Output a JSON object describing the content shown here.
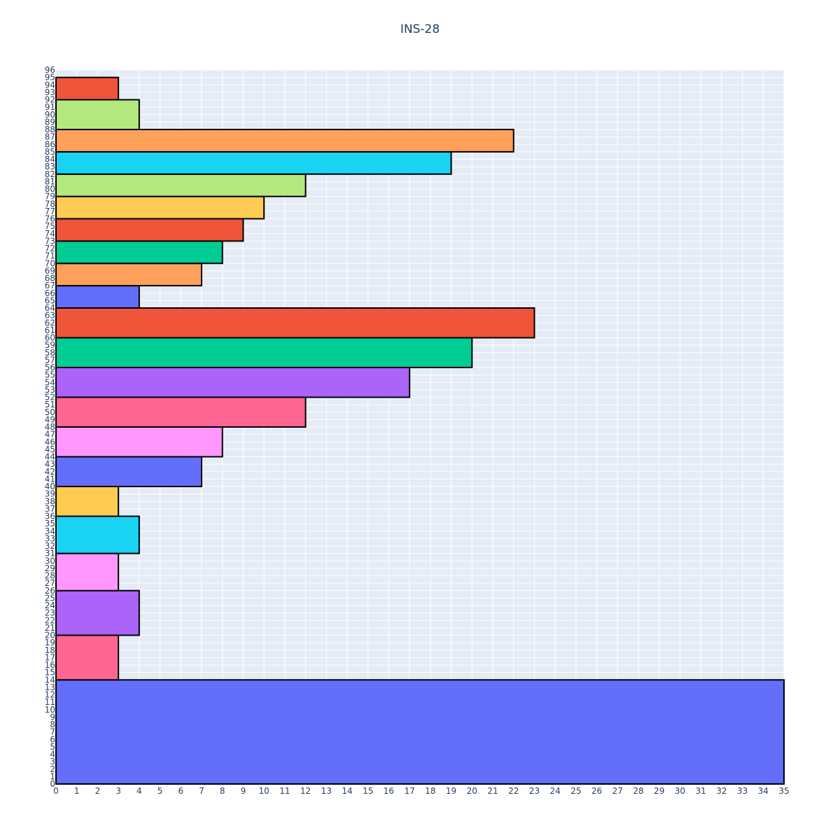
{
  "chart_data": {
    "type": "bar",
    "orientation": "horizontal",
    "title": "INS-28",
    "xlabel": "",
    "ylabel": "",
    "xlim": [
      0,
      35
    ],
    "ylim": [
      0,
      96
    ],
    "x_ticks": [
      0,
      1,
      2,
      3,
      4,
      5,
      6,
      7,
      8,
      9,
      10,
      11,
      12,
      13,
      14,
      15,
      16,
      17,
      18,
      19,
      20,
      21,
      22,
      23,
      24,
      25,
      26,
      27,
      28,
      29,
      30,
      31,
      32,
      33,
      34,
      35
    ],
    "y_ticks": [
      0,
      1,
      2,
      3,
      4,
      5,
      6,
      7,
      8,
      9,
      10,
      11,
      12,
      13,
      14,
      15,
      16,
      17,
      18,
      19,
      20,
      21,
      22,
      23,
      24,
      25,
      26,
      27,
      28,
      29,
      30,
      31,
      32,
      33,
      34,
      35,
      36,
      37,
      38,
      39,
      40,
      41,
      42,
      43,
      44,
      45,
      46,
      47,
      48,
      49,
      50,
      51,
      52,
      53,
      54,
      55,
      56,
      57,
      58,
      59,
      60,
      61,
      62,
      63,
      64,
      65,
      66,
      67,
      68,
      69,
      70,
      71,
      72,
      73,
      74,
      75,
      76,
      77,
      78,
      79,
      80,
      81,
      82,
      83,
      84,
      85,
      86,
      87,
      88,
      89,
      90,
      91,
      92,
      93,
      94,
      95,
      96
    ],
    "grid": true,
    "legend": "none",
    "bars": [
      {
        "y0": 0,
        "y1": 14,
        "value": 35,
        "color": "#636efa"
      },
      {
        "y0": 14,
        "y1": 20,
        "value": 3,
        "color": "#ff6692"
      },
      {
        "y0": 20,
        "y1": 26,
        "value": 4,
        "color": "#ab63fa"
      },
      {
        "y0": 26,
        "y1": 31,
        "value": 3,
        "color": "#ff97ff"
      },
      {
        "y0": 31,
        "y1": 36,
        "value": 4,
        "color": "#19d3f3"
      },
      {
        "y0": 36,
        "y1": 40,
        "value": 3,
        "color": "#fecb52"
      },
      {
        "y0": 40,
        "y1": 44,
        "value": 7,
        "color": "#636efa"
      },
      {
        "y0": 44,
        "y1": 48,
        "value": 8,
        "color": "#ff97ff"
      },
      {
        "y0": 48,
        "y1": 52,
        "value": 12,
        "color": "#ff6692"
      },
      {
        "y0": 52,
        "y1": 56,
        "value": 17,
        "color": "#ab63fa"
      },
      {
        "y0": 56,
        "y1": 60,
        "value": 20,
        "color": "#00cc96"
      },
      {
        "y0": 60,
        "y1": 64,
        "value": 23,
        "color": "#ef553b"
      },
      {
        "y0": 64,
        "y1": 67,
        "value": 4,
        "color": "#636efa"
      },
      {
        "y0": 67,
        "y1": 70,
        "value": 7,
        "color": "#ffa15a"
      },
      {
        "y0": 70,
        "y1": 73,
        "value": 8,
        "color": "#00cc96"
      },
      {
        "y0": 73,
        "y1": 76,
        "value": 9,
        "color": "#ef553b"
      },
      {
        "y0": 76,
        "y1": 79,
        "value": 10,
        "color": "#fecb52"
      },
      {
        "y0": 79,
        "y1": 82,
        "value": 12,
        "color": "#b6e880"
      },
      {
        "y0": 82,
        "y1": 85,
        "value": 19,
        "color": "#19d3f3"
      },
      {
        "y0": 85,
        "y1": 88,
        "value": 22,
        "color": "#ffa15a"
      },
      {
        "y0": 88,
        "y1": 92,
        "value": 4,
        "color": "#b6e880"
      },
      {
        "y0": 92,
        "y1": 95,
        "value": 3,
        "color": "#ef553b"
      }
    ],
    "colors": {
      "plot_background": "#e5ecf6",
      "grid": "#ffffff",
      "text": "#2a3f5f",
      "bar_outline": "#000000"
    }
  }
}
